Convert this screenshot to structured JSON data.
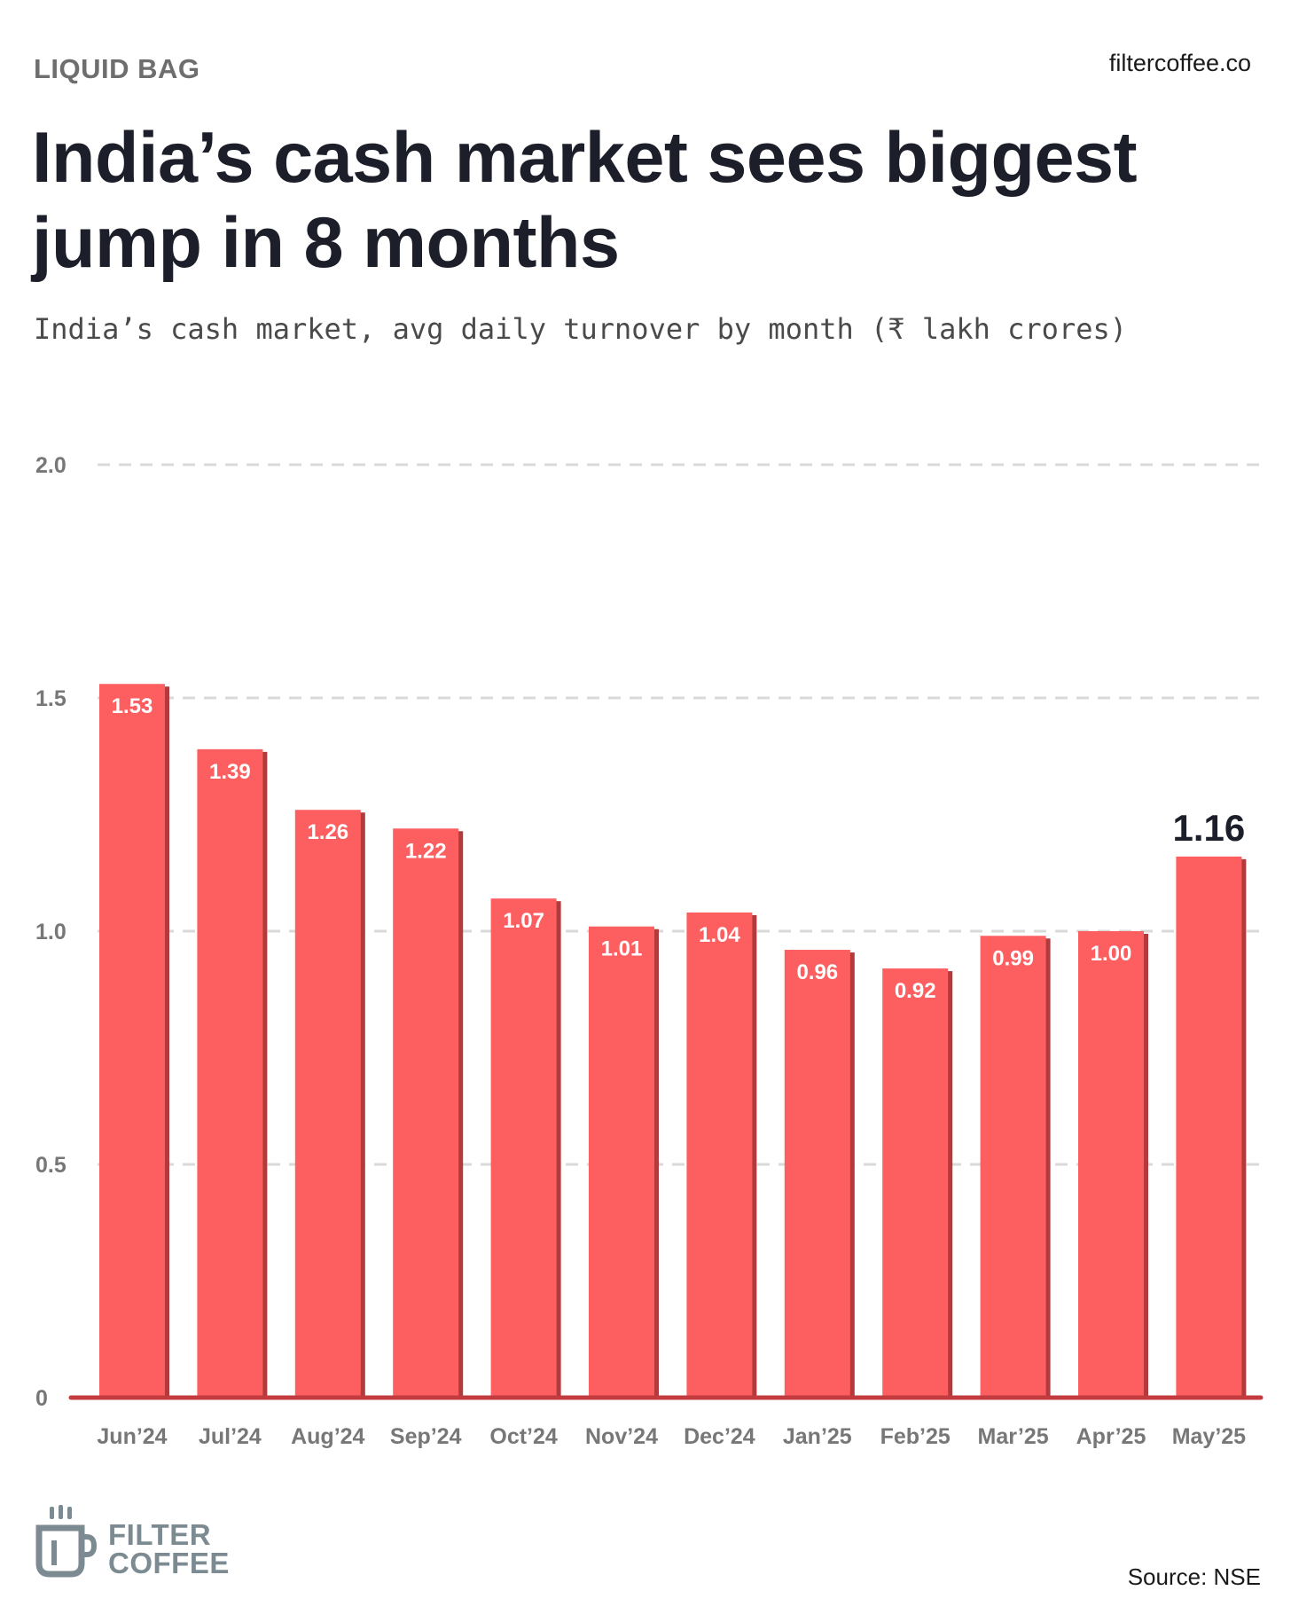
{
  "header": {
    "kicker": "LIQUID BAG",
    "site": "filtercoffee.co",
    "title": "India’s cash market sees biggest jump in 8 months",
    "subtitle": "India’s cash market, avg daily turnover by month (₹ lakh crores)"
  },
  "footer": {
    "logo_line1": "FILTER",
    "logo_line2": "COFFEE",
    "source": "Source: NSE"
  },
  "colors": {
    "bar": "#fd5f61",
    "bar_shadow": "#b03a3c",
    "baseline": "#c23b3f",
    "highlight_label": "#1c1f2a",
    "grid": "#d9d9d9",
    "tick": "#777777",
    "logo": "#7c8a92"
  },
  "chart_data": {
    "type": "bar",
    "title": "India’s cash market, avg daily turnover by month (₹ lakh crores)",
    "xlabel": "",
    "ylabel": "",
    "ylim": [
      0,
      2.0
    ],
    "yticks": [
      0,
      0.5,
      1.0,
      1.5,
      2.0
    ],
    "ytick_labels": [
      "0",
      "0.5",
      "1.0",
      "1.5",
      "2.0"
    ],
    "grid": true,
    "categories": [
      "Jun’24",
      "Jul’24",
      "Aug’24",
      "Sep’24",
      "Oct’24",
      "Nov’24",
      "Dec’24",
      "Jan’25",
      "Feb’25",
      "Mar’25",
      "Apr’25",
      "May’25"
    ],
    "values": [
      1.53,
      1.39,
      1.26,
      1.22,
      1.07,
      1.01,
      1.04,
      0.96,
      0.92,
      0.99,
      1.0,
      1.16
    ],
    "value_labels": [
      "1.53",
      "1.39",
      "1.26",
      "1.22",
      "1.07",
      "1.01",
      "1.04",
      "0.96",
      "0.92",
      "0.99",
      "1.00",
      "1.16"
    ],
    "highlight_index": 11
  }
}
